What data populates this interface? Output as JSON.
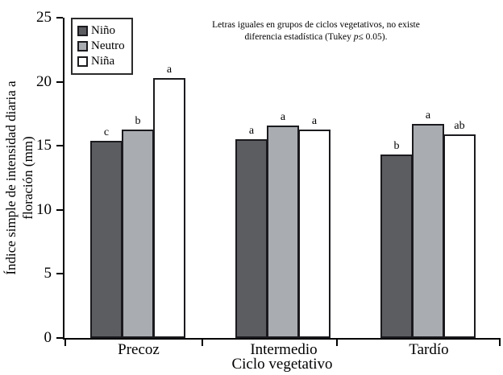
{
  "figure": {
    "y_axis_label_line1": "Índice simple de intensidad diaria a",
    "y_axis_label_line2": "floración (mm)",
    "x_axis_label": "Ciclo vegetativo",
    "annotation_line1": "Letras iguales en grupos de ciclos vegetativos, no existe",
    "annotation_line2_pre": "diferencia estadística (Tukey ",
    "annotation_p": "p",
    "annotation_line2_post": "≤ 0.05)."
  },
  "chart_data": {
    "type": "bar",
    "title": "",
    "xlabel": "Ciclo vegetativo",
    "ylabel": "Índice simple de intensidad diaria a floración (mm)",
    "ylim": [
      0,
      25
    ],
    "yticks": [
      0,
      5,
      10,
      15,
      20,
      25
    ],
    "grid": false,
    "legend_position": "top-left-inside",
    "categories": [
      "Precoz",
      "Intermedio",
      "Tardío"
    ],
    "series": [
      {
        "name": "Niño",
        "color": "#5c5d61",
        "values": [
          15.4,
          15.5,
          14.3
        ],
        "significance_letters": [
          "c",
          "a",
          "b"
        ]
      },
      {
        "name": "Neutro",
        "color": "#a9acb1",
        "values": [
          16.3,
          16.6,
          16.7
        ],
        "significance_letters": [
          "b",
          "a",
          "a"
        ]
      },
      {
        "name": "Niña",
        "color": "#ffffff",
        "values": [
          20.3,
          16.3,
          15.9
        ],
        "significance_letters": [
          "a",
          "a",
          "ab"
        ]
      }
    ],
    "bar_border_color": "#1b1b1f",
    "annotation": "Letras iguales en grupos de ciclos vegetativos, no existe diferencia estadística (Tukey p≤ 0.05)."
  }
}
